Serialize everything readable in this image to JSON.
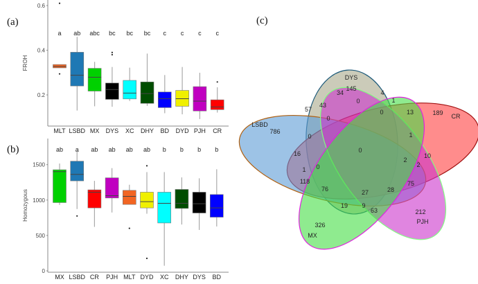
{
  "chart_data": [
    {
      "type": "box",
      "panel_label": "(a)",
      "ylabel": "FROH",
      "yticks": [
        0.2,
        0.4,
        0.6
      ],
      "ylim": [
        0.08,
        0.62
      ],
      "grid": false,
      "categories": [
        "MLT",
        "LSBD",
        "MX",
        "DYS",
        "XC",
        "DHY",
        "BD",
        "DYD",
        "PJH",
        "CR"
      ],
      "significance_letters": [
        "a",
        "ab",
        "abc",
        "bc",
        "bc",
        "bc",
        "c",
        "c",
        "c",
        "c"
      ],
      "colors": [
        "#f26522",
        "#1f78b4",
        "#00d100",
        "#000000",
        "#00ffff",
        "#004d00",
        "#0000ff",
        "#f0f000",
        "#c000c0",
        "#ff0000"
      ],
      "boxes": [
        {
          "whisker_low": 0.321,
          "q1": 0.321,
          "median": 0.327,
          "q3": 0.336,
          "whisker_high": 0.336,
          "outliers": [
            0.61,
            0.294
          ]
        },
        {
          "whisker_low": 0.13,
          "q1": 0.24,
          "median": 0.288,
          "q3": 0.391,
          "whisker_high": 0.46,
          "outliers": []
        },
        {
          "whisker_low": 0.149,
          "q1": 0.217,
          "median": 0.279,
          "q3": 0.319,
          "whisker_high": 0.348,
          "outliers": []
        },
        {
          "whisker_low": 0.147,
          "q1": 0.18,
          "median": 0.224,
          "q3": 0.253,
          "whisker_high": 0.325,
          "outliers": [
            0.39,
            0.38
          ]
        },
        {
          "whisker_low": 0.173,
          "q1": 0.182,
          "median": 0.208,
          "q3": 0.265,
          "whisker_high": 0.322,
          "outliers": []
        },
        {
          "whisker_low": 0.151,
          "q1": 0.162,
          "median": 0.206,
          "q3": 0.258,
          "whisker_high": 0.385,
          "outliers": []
        },
        {
          "whisker_low": 0.118,
          "q1": 0.143,
          "median": 0.183,
          "q3": 0.213,
          "whisker_high": 0.289,
          "outliers": []
        },
        {
          "whisker_low": 0.113,
          "q1": 0.149,
          "median": 0.183,
          "q3": 0.22,
          "whisker_high": 0.325,
          "outliers": []
        },
        {
          "whisker_low": 0.092,
          "q1": 0.128,
          "median": 0.172,
          "q3": 0.237,
          "whisker_high": 0.299,
          "outliers": []
        },
        {
          "whisker_low": 0.121,
          "q1": 0.134,
          "median": 0.146,
          "q3": 0.178,
          "whisker_high": 0.234,
          "outliers": [
            0.258
          ]
        }
      ]
    },
    {
      "type": "box",
      "panel_label": "(b)",
      "ylabel": "Homozygous",
      "yticks": [
        0,
        500,
        1000,
        1500
      ],
      "ylim": [
        0,
        1800
      ],
      "grid": false,
      "categories": [
        "MX",
        "LSBD",
        "CR",
        "PJH",
        "MLT",
        "DYD",
        "XC",
        "DHY",
        "DYS",
        "BD"
      ],
      "significance_letters": [
        "ab",
        "a",
        "ab",
        "ab",
        "ab",
        "ab",
        "b",
        "b",
        "b",
        "b"
      ],
      "colors": [
        "#00d100",
        "#1f78b4",
        "#ff0000",
        "#c000c0",
        "#f26522",
        "#f0f000",
        "#00ffff",
        "#004d00",
        "#000000",
        "#0000ff"
      ],
      "boxes": [
        {
          "whisker_low": 931,
          "q1": 964,
          "median": 1402,
          "q3": 1428,
          "whisker_high": 1516,
          "outliers": []
        },
        {
          "whisker_low": 873,
          "q1": 1271,
          "median": 1363,
          "q3": 1549,
          "whisker_high": 1690,
          "outliers": [
            775
          ]
        },
        {
          "whisker_low": 621,
          "q1": 889,
          "median": 1111,
          "q3": 1144,
          "whisker_high": 1271,
          "outliers": []
        },
        {
          "whisker_low": 824,
          "q1": 1029,
          "median": 1062,
          "q3": 1314,
          "whisker_high": 1451,
          "outliers": []
        },
        {
          "whisker_low": 938,
          "q1": 938,
          "median": 1052,
          "q3": 1137,
          "whisker_high": 1216,
          "outliers": [
            601
          ]
        },
        {
          "whisker_low": 807,
          "q1": 889,
          "median": 977,
          "q3": 1111,
          "whisker_high": 1395,
          "outliers": [
            1484,
            176
          ]
        },
        {
          "whisker_low": 72,
          "q1": 676,
          "median": 954,
          "q3": 1111,
          "whisker_high": 1395,
          "outliers": []
        },
        {
          "whisker_low": 654,
          "q1": 882,
          "median": 954,
          "q3": 1150,
          "whisker_high": 1320,
          "outliers": []
        },
        {
          "whisker_low": 578,
          "q1": 817,
          "median": 948,
          "q3": 1111,
          "whisker_high": 1307,
          "outliers": []
        },
        {
          "whisker_low": 627,
          "q1": 758,
          "median": 889,
          "q3": 1078,
          "whisker_high": 1435,
          "outliers": []
        }
      ]
    },
    {
      "type": "venn",
      "panel_label": "(c)",
      "sets": [
        {
          "name": "DYS",
          "unique": "145",
          "color": "#a8a98a",
          "stroke": "#1d5a7a"
        },
        {
          "name": "CR",
          "unique": "189",
          "color": "#ff4040",
          "stroke": "#a01010"
        },
        {
          "name": "LSBD",
          "unique": "786",
          "color": "#5b9bd5",
          "stroke": "#b06010"
        },
        {
          "name": "PJH",
          "unique": "212",
          "color": "#cc33cc",
          "stroke": "#80ff80"
        },
        {
          "name": "MX",
          "unique": "326",
          "color": "#44dd44",
          "stroke": "#e020e0"
        }
      ],
      "intersections": [
        "34",
        "4",
        "57",
        "43",
        "0",
        "1",
        "0",
        "13",
        "0",
        "0",
        "1",
        "0",
        "16",
        "10",
        "2",
        "2",
        "1",
        "0",
        "118",
        "76",
        "27",
        "28",
        "75",
        "19",
        "9",
        "63"
      ]
    }
  ]
}
